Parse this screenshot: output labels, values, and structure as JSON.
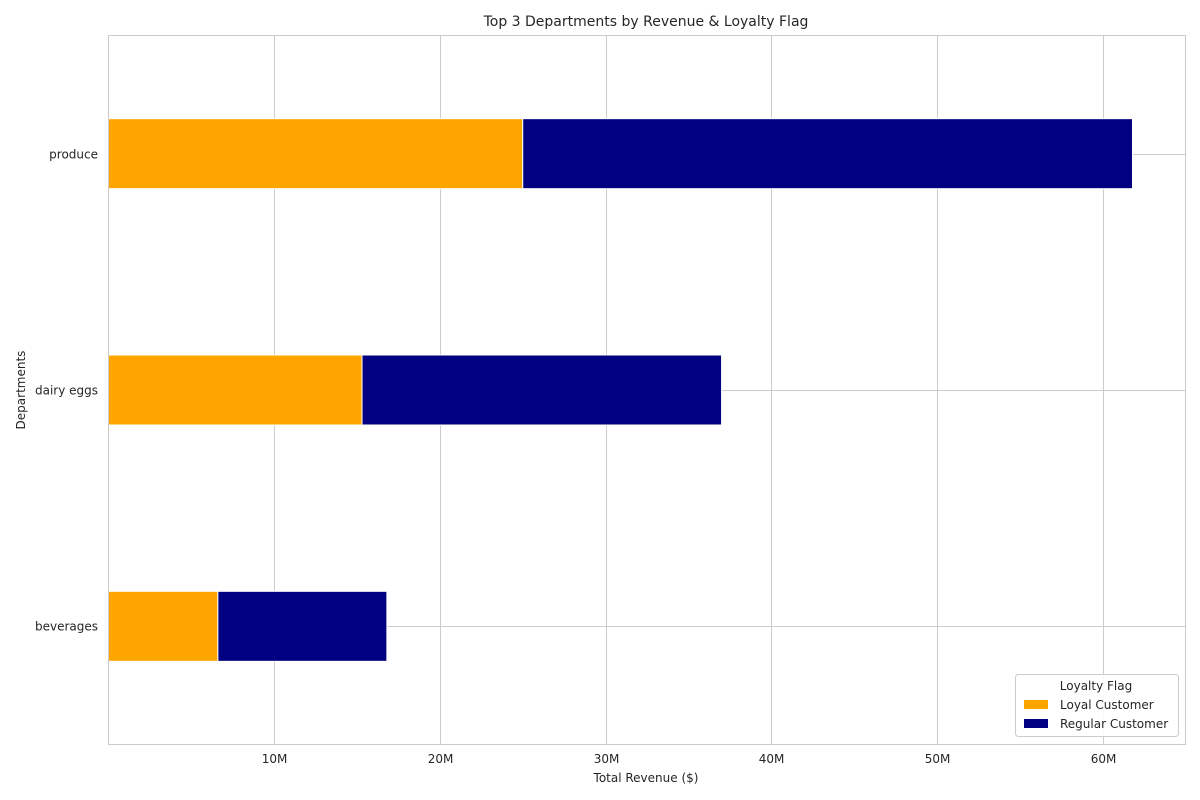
{
  "chart_data": {
    "type": "bar",
    "orientation": "horizontal",
    "stacked": true,
    "title": "Top 3 Departments by Revenue & Loyalty Flag",
    "xlabel": "Total Revenue ($)",
    "ylabel": "Departments",
    "categories": [
      "produce",
      "dairy eggs",
      "beverages"
    ],
    "series": [
      {
        "name": "Loyal Customer",
        "color": "#FFA500",
        "values": [
          25000000,
          15300000,
          6600000
        ]
      },
      {
        "name": "Regular Customer",
        "color": "#000080",
        "values": [
          36800000,
          21700000,
          10200000
        ]
      }
    ],
    "xlim": [
      0,
      65000000
    ],
    "xticks": [
      10000000,
      20000000,
      30000000,
      40000000,
      50000000,
      60000000
    ],
    "xtick_labels": [
      "10M",
      "20M",
      "30M",
      "40M",
      "50M",
      "60M"
    ],
    "grid": true,
    "legend_title": "Loyalty Flag",
    "legend_position": "lower-right"
  }
}
